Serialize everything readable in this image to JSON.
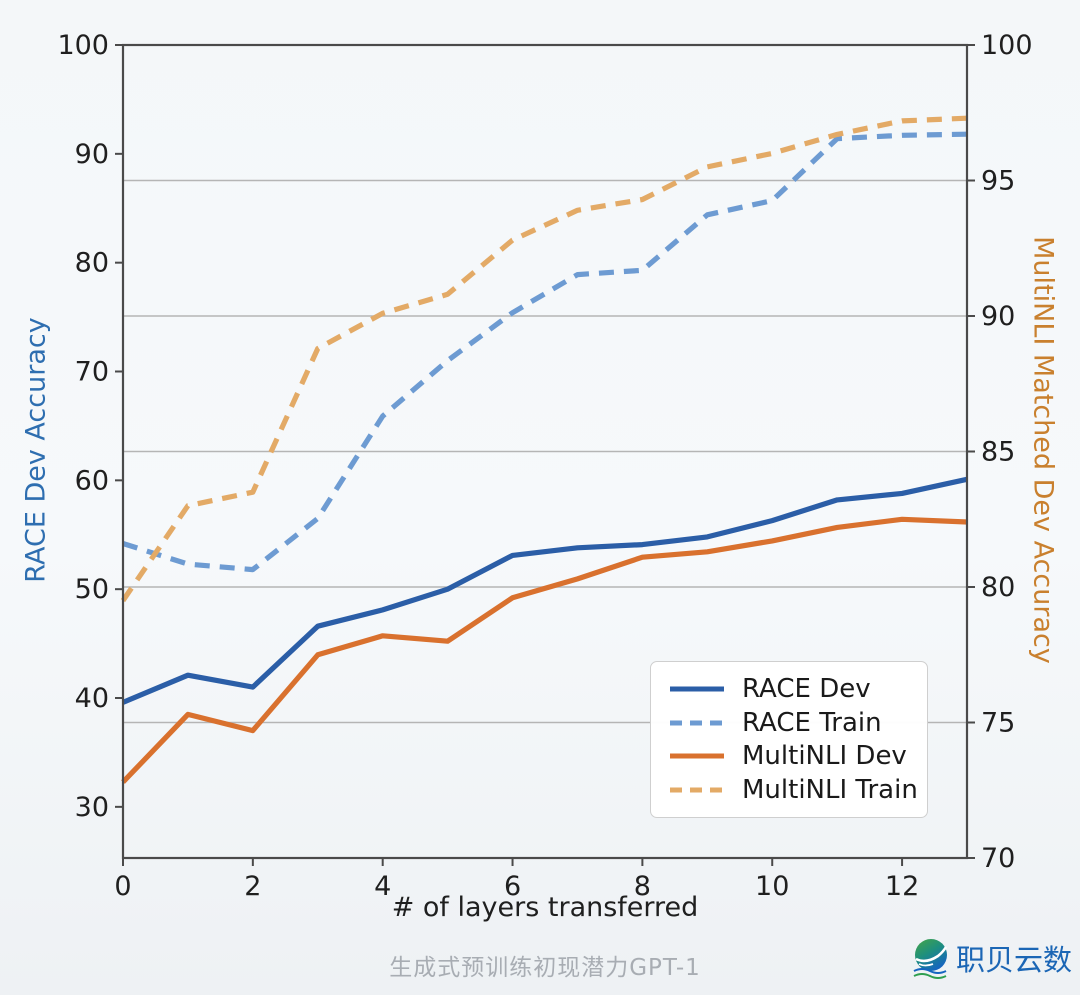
{
  "page": {
    "caption": "生成式预训练初现潜力GPT-1",
    "watermark_text": "职贝云数"
  },
  "chart_data": {
    "type": "line",
    "xlabel": "# of layers transferred",
    "x": [
      0,
      1,
      2,
      3,
      4,
      5,
      6,
      7,
      8,
      9,
      10,
      11,
      12,
      13
    ],
    "xlim": [
      0,
      13
    ],
    "xticks": [
      0,
      2,
      4,
      6,
      8,
      10,
      12
    ],
    "grid": true,
    "legend_position": "lower right",
    "left_axis": {
      "label": "RACE Dev Accuracy",
      "color": "#2e6eb0",
      "range": [
        25.3,
        100
      ],
      "ticks": [
        30,
        40,
        50,
        60,
        70,
        80,
        90,
        100
      ]
    },
    "right_axis": {
      "label": "MultiNLI Matched Dev Accuracy",
      "color": "#c9802e",
      "range": [
        70,
        100
      ],
      "ticks": [
        70,
        75,
        80,
        85,
        90,
        95,
        100
      ],
      "gridlines": [
        75,
        80,
        85,
        90,
        95
      ]
    },
    "series": [
      {
        "name": "RACE Dev",
        "axis": "left",
        "style": "solid",
        "color": "#2b5ea7",
        "values": [
          39.6,
          42.1,
          41.0,
          46.6,
          48.1,
          50.0,
          53.1,
          53.8,
          54.1,
          54.8,
          56.3,
          58.2,
          58.8,
          60.1
        ]
      },
      {
        "name": "RACE Train",
        "axis": "left",
        "style": "dashed",
        "color": "#6d9bd2",
        "values": [
          54.2,
          52.3,
          51.8,
          56.5,
          65.9,
          71.0,
          75.4,
          78.9,
          79.3,
          84.4,
          85.7,
          91.4,
          91.7,
          91.8
        ]
      },
      {
        "name": "MultiNLI Dev",
        "axis": "right",
        "style": "solid",
        "color": "#d9712e",
        "values": [
          72.8,
          75.3,
          74.7,
          77.5,
          78.2,
          78.0,
          79.6,
          80.3,
          81.1,
          81.3,
          81.7,
          82.2,
          82.5,
          82.4
        ]
      },
      {
        "name": "MultiNLI Train",
        "axis": "right",
        "style": "dashed",
        "color": "#e3aa66",
        "values": [
          79.5,
          83.0,
          83.5,
          88.8,
          90.1,
          90.8,
          92.8,
          93.9,
          94.3,
          95.5,
          96.0,
          96.7,
          97.2,
          97.3
        ]
      }
    ]
  },
  "style": {
    "grid_color": "#b5b5b5",
    "spine_color": "#4a4a4a",
    "tick_label_color": "#1f1f1f"
  }
}
